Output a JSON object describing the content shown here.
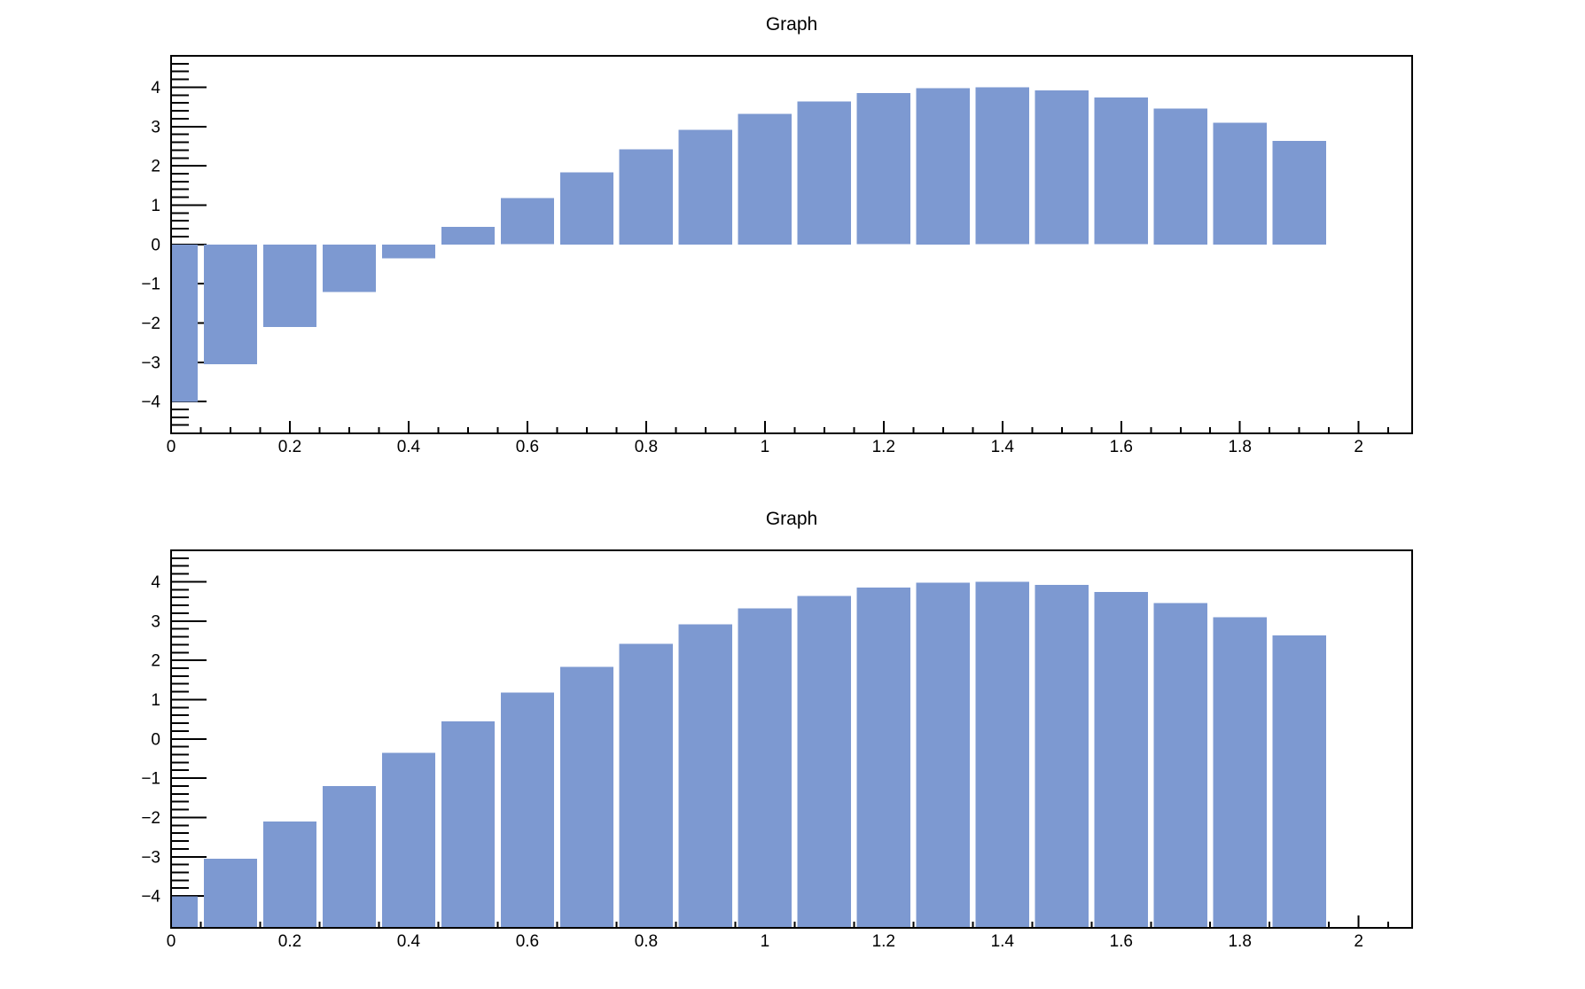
{
  "canvas": {
    "background": "#ffffff",
    "frame_color": "#000000",
    "text_color": "#000000"
  },
  "chart_data": [
    {
      "type": "bar",
      "title": "Graph",
      "baseline": "zero",
      "bar_color": "#7d99d1",
      "bar_half_width": 0.045,
      "grid": false,
      "legend": null,
      "xlabel": "",
      "ylabel": "",
      "xlim": [
        0,
        2.09
      ],
      "ylim": [
        -4.81,
        4.8
      ],
      "x": [
        0.0,
        0.1,
        0.2,
        0.3,
        0.4,
        0.5,
        0.6,
        0.7,
        0.8,
        0.9,
        1.0,
        1.1,
        1.2,
        1.3,
        1.4,
        1.5,
        1.6,
        1.7,
        1.8,
        1.9
      ],
      "y": [
        -4.013,
        -3.045,
        -2.106,
        -1.206,
        -0.354,
        0.442,
        1.174,
        1.833,
        2.415,
        2.912,
        3.32,
        3.636,
        3.854,
        3.975,
        3.996,
        3.917,
        3.739,
        3.463,
        3.093,
        2.632
      ],
      "x_ticks": {
        "values": [
          0,
          0.2,
          0.4,
          0.6,
          0.8,
          1.0,
          1.2,
          1.4,
          1.6,
          1.8,
          2.0
        ],
        "labels": [
          "0",
          "0.2",
          "0.4",
          "0.6",
          "0.8",
          "1",
          "1.2",
          "1.4",
          "1.6",
          "1.8",
          "2"
        ],
        "minor_step": 0.05
      },
      "y_ticks": {
        "values": [
          -4,
          -3,
          -2,
          -1,
          0,
          1,
          2,
          3,
          4
        ],
        "labels": [
          "−4",
          "−3",
          "−2",
          "−1",
          "0",
          "1",
          "2",
          "3",
          "4"
        ],
        "minor_step": 0.2
      }
    },
    {
      "type": "bar",
      "title": "Graph",
      "baseline": "bottom",
      "bar_color": "#7d99d1",
      "bar_half_width": 0.045,
      "grid": false,
      "legend": null,
      "xlabel": "",
      "ylabel": "",
      "xlim": [
        0,
        2.09
      ],
      "ylim": [
        -4.81,
        4.8
      ],
      "x": [
        0.0,
        0.1,
        0.2,
        0.3,
        0.4,
        0.5,
        0.6,
        0.7,
        0.8,
        0.9,
        1.0,
        1.1,
        1.2,
        1.3,
        1.4,
        1.5,
        1.6,
        1.7,
        1.8,
        1.9
      ],
      "y": [
        -4.013,
        -3.045,
        -2.106,
        -1.206,
        -0.354,
        0.442,
        1.174,
        1.833,
        2.415,
        2.912,
        3.32,
        3.636,
        3.854,
        3.975,
        3.996,
        3.917,
        3.739,
        3.463,
        3.093,
        2.632
      ],
      "x_ticks": {
        "values": [
          0,
          0.2,
          0.4,
          0.6,
          0.8,
          1.0,
          1.2,
          1.4,
          1.6,
          1.8,
          2.0
        ],
        "labels": [
          "0",
          "0.2",
          "0.4",
          "0.6",
          "0.8",
          "1",
          "1.2",
          "1.4",
          "1.6",
          "1.8",
          "2"
        ],
        "minor_step": 0.05
      },
      "y_ticks": {
        "values": [
          -4,
          -3,
          -2,
          -1,
          0,
          1,
          2,
          3,
          4
        ],
        "labels": [
          "−4",
          "−3",
          "−2",
          "−1",
          "0",
          "1",
          "2",
          "3",
          "4"
        ],
        "minor_step": 0.2
      }
    }
  ]
}
